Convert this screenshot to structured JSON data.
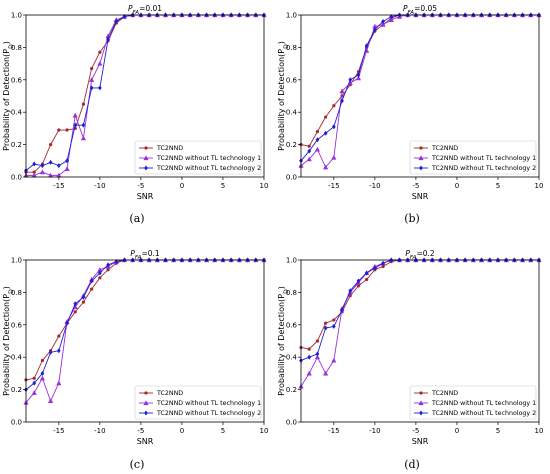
{
  "chart_data": [
    {
      "type": "line",
      "caption": "(a)",
      "title": "P_FA=0.01",
      "title_main": "P",
      "title_sub": "FA",
      "title_value": "=0.01",
      "xlabel": "SNR",
      "ylabel": "Probability of Detection(P_D)",
      "ylabel_main": "Probability of Detection(P",
      "ylabel_sub": "D",
      "ylabel_end": ")",
      "xlim": [
        -19,
        10
      ],
      "ylim": [
        0,
        1
      ],
      "xticks": [
        -15,
        -10,
        -5,
        0,
        5,
        10
      ],
      "yticks": [
        0.0,
        0.2,
        0.4,
        0.6,
        0.8,
        1.0
      ],
      "legend_position": "lower-right",
      "grid": false,
      "x": [
        -19,
        -18,
        -17,
        -16,
        -15,
        -14,
        -13,
        -12,
        -11,
        -10,
        -9,
        -8,
        -7,
        -6,
        -5,
        -4,
        -3,
        -2,
        -1,
        0,
        1,
        2,
        3,
        4,
        5,
        6,
        7,
        8,
        9,
        10
      ],
      "series": [
        {
          "name": "TC2NND",
          "color": "#a52a2a",
          "marker": "dot",
          "values": [
            0.03,
            0.03,
            0.08,
            0.2,
            0.29,
            0.29,
            0.3,
            0.45,
            0.67,
            0.77,
            0.84,
            0.95,
            0.99,
            1,
            1,
            1,
            1,
            1,
            1,
            1,
            1,
            1,
            1,
            1,
            1,
            1,
            1,
            1,
            1,
            1
          ]
        },
        {
          "name": "TC2NND without TL technology 1",
          "color": "#9b30d9",
          "marker": "triangle",
          "values": [
            0.01,
            0.01,
            0.03,
            0.01,
            0.01,
            0.05,
            0.38,
            0.24,
            0.6,
            0.7,
            0.87,
            0.97,
            0.99,
            1,
            1,
            1,
            1,
            1,
            1,
            1,
            1,
            1,
            1,
            1,
            1,
            1,
            1,
            1,
            1,
            1
          ]
        },
        {
          "name": "TC2NND without TL technology 2",
          "color": "#1f1fd6",
          "marker": "diamond",
          "values": [
            0.04,
            0.08,
            0.07,
            0.09,
            0.07,
            0.1,
            0.32,
            0.32,
            0.55,
            0.55,
            0.85,
            0.96,
            0.99,
            1,
            1,
            1,
            1,
            1,
            1,
            1,
            1,
            1,
            1,
            1,
            1,
            1,
            1,
            1,
            1,
            1
          ]
        }
      ]
    },
    {
      "type": "line",
      "caption": "(b)",
      "title": "P_FA=0.05",
      "title_main": "P",
      "title_sub": "FA",
      "title_value": "=0.05",
      "xlabel": "SNR",
      "ylabel": "Probability of Detection(P_D)",
      "ylabel_main": "Probability of Detection(P",
      "ylabel_sub": "D",
      "ylabel_end": ")",
      "xlim": [
        -19,
        10
      ],
      "ylim": [
        0,
        1
      ],
      "xticks": [
        -15,
        -10,
        -5,
        0,
        5,
        10
      ],
      "yticks": [
        0.0,
        0.2,
        0.4,
        0.6,
        0.8,
        1.0
      ],
      "legend_position": "lower-right",
      "grid": false,
      "x": [
        -19,
        -18,
        -17,
        -16,
        -15,
        -14,
        -13,
        -12,
        -11,
        -10,
        -9,
        -8,
        -7,
        -6,
        -5,
        -4,
        -3,
        -2,
        -1,
        0,
        1,
        2,
        3,
        4,
        5,
        6,
        7,
        8,
        9,
        10
      ],
      "series": [
        {
          "name": "TC2NND",
          "color": "#a52a2a",
          "marker": "dot",
          "values": [
            0.2,
            0.19,
            0.28,
            0.37,
            0.44,
            0.5,
            0.57,
            0.65,
            0.8,
            0.9,
            0.94,
            0.98,
            1,
            1,
            1,
            1,
            1,
            1,
            1,
            1,
            1,
            1,
            1,
            1,
            1,
            1,
            1,
            1,
            1,
            1
          ]
        },
        {
          "name": "TC2NND without TL technology 1",
          "color": "#9b30d9",
          "marker": "triangle",
          "values": [
            0.07,
            0.11,
            0.17,
            0.06,
            0.12,
            0.53,
            0.58,
            0.61,
            0.78,
            0.93,
            0.94,
            0.97,
            0.99,
            1,
            1,
            1,
            1,
            1,
            1,
            1,
            1,
            1,
            1,
            1,
            1,
            1,
            1,
            1,
            1,
            1
          ]
        },
        {
          "name": "TC2NND without TL technology 2",
          "color": "#1f1fd6",
          "marker": "diamond",
          "values": [
            0.1,
            0.16,
            0.23,
            0.27,
            0.31,
            0.47,
            0.6,
            0.63,
            0.81,
            0.91,
            0.96,
            0.99,
            1,
            1,
            1,
            1,
            1,
            1,
            1,
            1,
            1,
            1,
            1,
            1,
            1,
            1,
            1,
            1,
            1,
            1
          ]
        }
      ]
    },
    {
      "type": "line",
      "caption": "(c)",
      "title": "P_FA=0.1",
      "title_main": "P",
      "title_sub": "FA",
      "title_value": "=0.1",
      "xlabel": "SNR",
      "ylabel": "Probability of Detection(P_D)",
      "ylabel_main": "Probability of Detection(P",
      "ylabel_sub": "D",
      "ylabel_end": ")",
      "xlim": [
        -19,
        10
      ],
      "ylim": [
        0,
        1
      ],
      "xticks": [
        -15,
        -10,
        -5,
        0,
        5,
        10
      ],
      "yticks": [
        0.0,
        0.2,
        0.4,
        0.6,
        0.8,
        1.0
      ],
      "legend_position": "lower-right",
      "grid": false,
      "x": [
        -19,
        -18,
        -17,
        -16,
        -15,
        -14,
        -13,
        -12,
        -11,
        -10,
        -9,
        -8,
        -7,
        -6,
        -5,
        -4,
        -3,
        -2,
        -1,
        0,
        1,
        2,
        3,
        4,
        5,
        6,
        7,
        8,
        9,
        10
      ],
      "series": [
        {
          "name": "TC2NND",
          "color": "#a52a2a",
          "marker": "dot",
          "values": [
            0.26,
            0.27,
            0.38,
            0.44,
            0.53,
            0.61,
            0.68,
            0.74,
            0.82,
            0.89,
            0.94,
            0.98,
            1,
            1,
            1,
            1,
            1,
            1,
            1,
            1,
            1,
            1,
            1,
            1,
            1,
            1,
            1,
            1,
            1,
            1
          ]
        },
        {
          "name": "TC2NND without TL technology 1",
          "color": "#9b30d9",
          "marker": "triangle",
          "values": [
            0.12,
            0.18,
            0.27,
            0.13,
            0.24,
            0.62,
            0.71,
            0.78,
            0.88,
            0.94,
            0.96,
            0.99,
            1,
            1,
            1,
            1,
            1,
            1,
            1,
            1,
            1,
            1,
            1,
            1,
            1,
            1,
            1,
            1,
            1,
            1
          ]
        },
        {
          "name": "TC2NND without TL technology 2",
          "color": "#1f1fd6",
          "marker": "diamond",
          "values": [
            0.2,
            0.24,
            0.3,
            0.43,
            0.44,
            0.61,
            0.73,
            0.77,
            0.87,
            0.92,
            0.97,
            0.99,
            1,
            1,
            1,
            1,
            1,
            1,
            1,
            1,
            1,
            1,
            1,
            1,
            1,
            1,
            1,
            1,
            1,
            1
          ]
        }
      ]
    },
    {
      "type": "line",
      "caption": "(d)",
      "title": "P_FA=0.2",
      "title_main": "P",
      "title_sub": "FA",
      "title_value": "=0.2",
      "xlabel": "SNR",
      "ylabel": "Probability of Detection(P_D)",
      "ylabel_main": "Probability of Detection(P",
      "ylabel_sub": "D",
      "ylabel_end": ")",
      "xlim": [
        -19,
        10
      ],
      "ylim": [
        0,
        1
      ],
      "xticks": [
        -15,
        -10,
        -5,
        0,
        5,
        10
      ],
      "yticks": [
        0.0,
        0.2,
        0.4,
        0.6,
        0.8,
        1.0
      ],
      "legend_position": "lower-right",
      "grid": false,
      "x": [
        -19,
        -18,
        -17,
        -16,
        -15,
        -14,
        -13,
        -12,
        -11,
        -10,
        -9,
        -8,
        -7,
        -6,
        -5,
        -4,
        -3,
        -2,
        -1,
        0,
        1,
        2,
        3,
        4,
        5,
        6,
        7,
        8,
        9,
        10
      ],
      "series": [
        {
          "name": "TC2NND",
          "color": "#a52a2a",
          "marker": "dot",
          "values": [
            0.46,
            0.45,
            0.5,
            0.61,
            0.63,
            0.68,
            0.78,
            0.84,
            0.88,
            0.94,
            0.96,
            0.99,
            1,
            1,
            1,
            1,
            1,
            1,
            1,
            1,
            1,
            1,
            1,
            1,
            1,
            1,
            1,
            1,
            1,
            1
          ]
        },
        {
          "name": "TC2NND without TL technology 1",
          "color": "#9b30d9",
          "marker": "triangle",
          "values": [
            0.22,
            0.3,
            0.4,
            0.3,
            0.38,
            0.7,
            0.8,
            0.86,
            0.92,
            0.96,
            0.98,
            1,
            1,
            1,
            1,
            1,
            1,
            1,
            1,
            1,
            1,
            1,
            1,
            1,
            1,
            1,
            1,
            1,
            1,
            1
          ]
        },
        {
          "name": "TC2NND without TL technology 2",
          "color": "#1f1fd6",
          "marker": "diamond",
          "values": [
            0.38,
            0.4,
            0.42,
            0.58,
            0.59,
            0.69,
            0.81,
            0.87,
            0.92,
            0.95,
            0.98,
            1,
            1,
            1,
            1,
            1,
            1,
            1,
            1,
            1,
            1,
            1,
            1,
            1,
            1,
            1,
            1,
            1,
            1,
            1
          ]
        }
      ]
    }
  ]
}
